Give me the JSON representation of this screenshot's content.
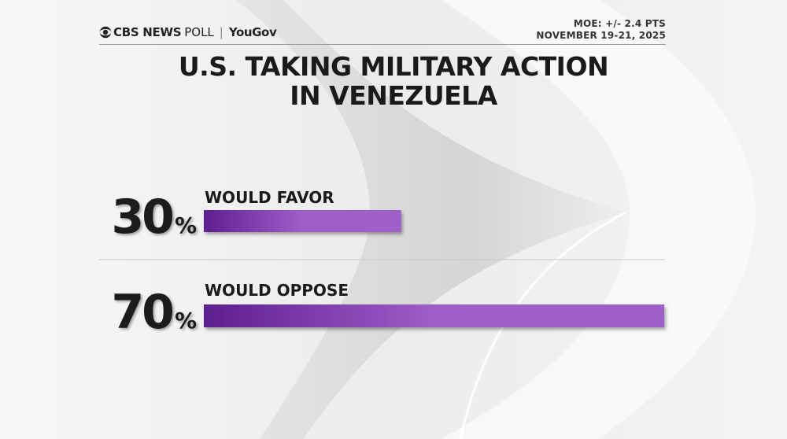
{
  "header": {
    "brand_cbs": "CBS NEWS",
    "brand_poll": "POLL",
    "brand_partner": "YouGov",
    "moe": "MOE: +/- 2.4 PTS",
    "dates": "NOVEMBER 19-21, 2025"
  },
  "title_line1": "U.S. TAKING MILITARY ACTION",
  "title_line2": "IN VENEZUELA",
  "colors": {
    "bar_dark": "#5e1f8e",
    "bar_light": "#9e5ec9",
    "text_dark": "#1a1a1a",
    "divider": "#c8c8c8"
  },
  "chart_data": {
    "type": "bar",
    "orientation": "horizontal",
    "categories": [
      "WOULD FAVOR",
      "WOULD OPPOSE"
    ],
    "values": [
      30,
      70
    ],
    "value_labels": [
      "30",
      "70"
    ],
    "value_suffix": "%",
    "xlim": [
      0,
      70
    ]
  }
}
